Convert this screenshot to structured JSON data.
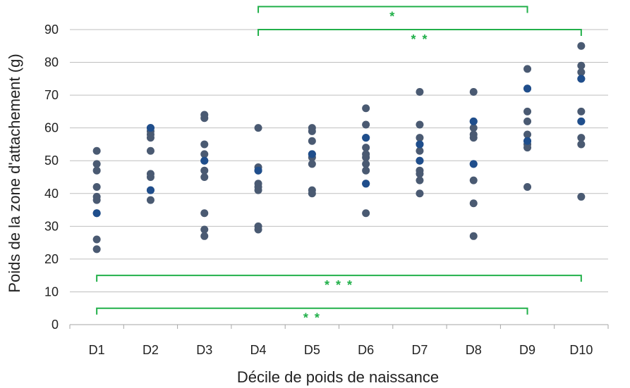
{
  "chart_data": {
    "type": "scatter",
    "xlabel": "Décile de poids de naissance",
    "ylabel": "Poids de la zone d'attachement (g)",
    "categories": [
      "D1",
      "D2",
      "D3",
      "D4",
      "D5",
      "D6",
      "D7",
      "D8",
      "D9",
      "D10"
    ],
    "ylim": [
      0,
      90
    ],
    "yticks": [
      0,
      10,
      20,
      30,
      40,
      50,
      60,
      70,
      80,
      90
    ],
    "grid": true,
    "colors": {
      "points": "#4a5a72",
      "points_highlight": "#1f4e8c",
      "brackets": "#22b04a",
      "grid": "#bfbfbf",
      "axis": "#a6a6a6"
    },
    "points": [
      {
        "category": "D1",
        "values": [
          53,
          49,
          47,
          42,
          39,
          38,
          34,
          26,
          23
        ]
      },
      {
        "category": "D2",
        "values": [
          60,
          59,
          58,
          57,
          53,
          46,
          45,
          41,
          38
        ]
      },
      {
        "category": "D3",
        "values": [
          64,
          63,
          55,
          52,
          50,
          47,
          45,
          34,
          29,
          27
        ]
      },
      {
        "category": "D4",
        "values": [
          60,
          48,
          47,
          43,
          42,
          41,
          30,
          29
        ]
      },
      {
        "category": "D5",
        "values": [
          60,
          59,
          56,
          52,
          51,
          49,
          41,
          40
        ]
      },
      {
        "category": "D6",
        "values": [
          66,
          61,
          57,
          54,
          52,
          51,
          49,
          47,
          43,
          34
        ]
      },
      {
        "category": "D7",
        "values": [
          71,
          61,
          57,
          55,
          53,
          50,
          47,
          46,
          44,
          40
        ]
      },
      {
        "category": "D8",
        "values": [
          71,
          62,
          60,
          58,
          57,
          49,
          44,
          37,
          27
        ]
      },
      {
        "category": "D9",
        "values": [
          78,
          72,
          65,
          62,
          58,
          56,
          55,
          54,
          42
        ]
      },
      {
        "category": "D10",
        "values": [
          85,
          79,
          77,
          75,
          65,
          62,
          57,
          55,
          39
        ]
      }
    ],
    "highlight_points": [
      {
        "category": "D1",
        "value": 34
      },
      {
        "category": "D2",
        "value": 60
      },
      {
        "category": "D2",
        "value": 41
      },
      {
        "category": "D3",
        "value": 50
      },
      {
        "category": "D4",
        "value": 47
      },
      {
        "category": "D5",
        "value": 52
      },
      {
        "category": "D6",
        "value": 57
      },
      {
        "category": "D6",
        "value": 43
      },
      {
        "category": "D7",
        "value": 55
      },
      {
        "category": "D7",
        "value": 50
      },
      {
        "category": "D8",
        "value": 62
      },
      {
        "category": "D8",
        "value": 49
      },
      {
        "category": "D9",
        "value": 72
      },
      {
        "category": "D9",
        "value": 56
      },
      {
        "category": "D10",
        "value": 75
      },
      {
        "category": "D10",
        "value": 62
      }
    ],
    "significance_brackets": [
      {
        "from": "D4",
        "to": "D9",
        "y": 97,
        "label": "*"
      },
      {
        "from": "D4",
        "to": "D10",
        "y": 90,
        "label": "* *"
      },
      {
        "from": "D1",
        "to": "D10",
        "y": 15,
        "label": "* * *"
      },
      {
        "from": "D1",
        "to": "D9",
        "y": 5,
        "label": "* *"
      }
    ]
  }
}
